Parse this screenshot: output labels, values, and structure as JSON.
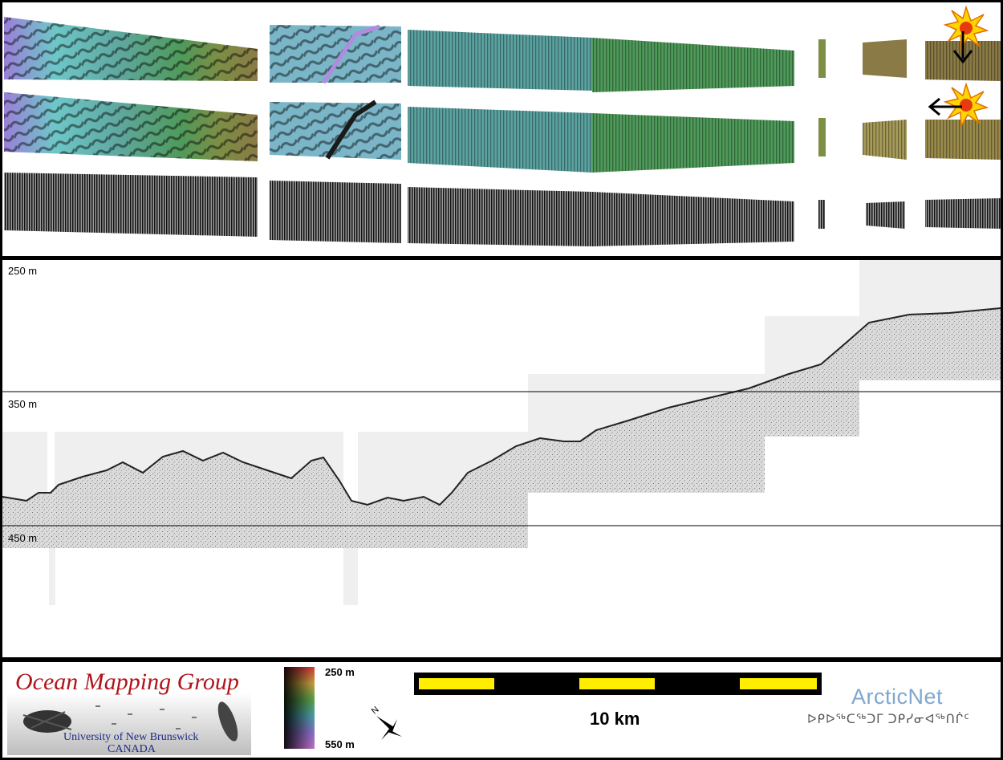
{
  "profile": {
    "depth_labels": [
      "250 m",
      "350 m",
      "450 m"
    ]
  },
  "legend": {
    "logo_title": "Ocean Mapping Group",
    "logo_subtitle_line1": "University of New Brunswick",
    "logo_subtitle_line2": "CANADA",
    "colorbar_top_label": "250 m",
    "colorbar_bottom_label": "550 m",
    "north_label": "N",
    "scale_label": "10 km",
    "partner_name": "ArcticNet",
    "partner_tagline": "ᐅᑭᐅᖅᑕᖅᑐᒥ ᑐᑭᓯᓂᐊᖅᑎᒌᑦ"
  },
  "colors": {
    "panel_border": "#000000",
    "scale_bar_fill": "#ffee00",
    "scale_bar_dark": "#000000",
    "omg_title": "#b0141a",
    "omg_subtitle": "#1c2a85",
    "arcticnet": "#7fa7cf"
  },
  "icons": {
    "sun_icon": "sun-illumination-icon",
    "arrow_down": "illumination-arrow-down-icon",
    "arrow_left": "illumination-arrow-left-icon",
    "north_arrow": "north-arrow-icon"
  }
}
